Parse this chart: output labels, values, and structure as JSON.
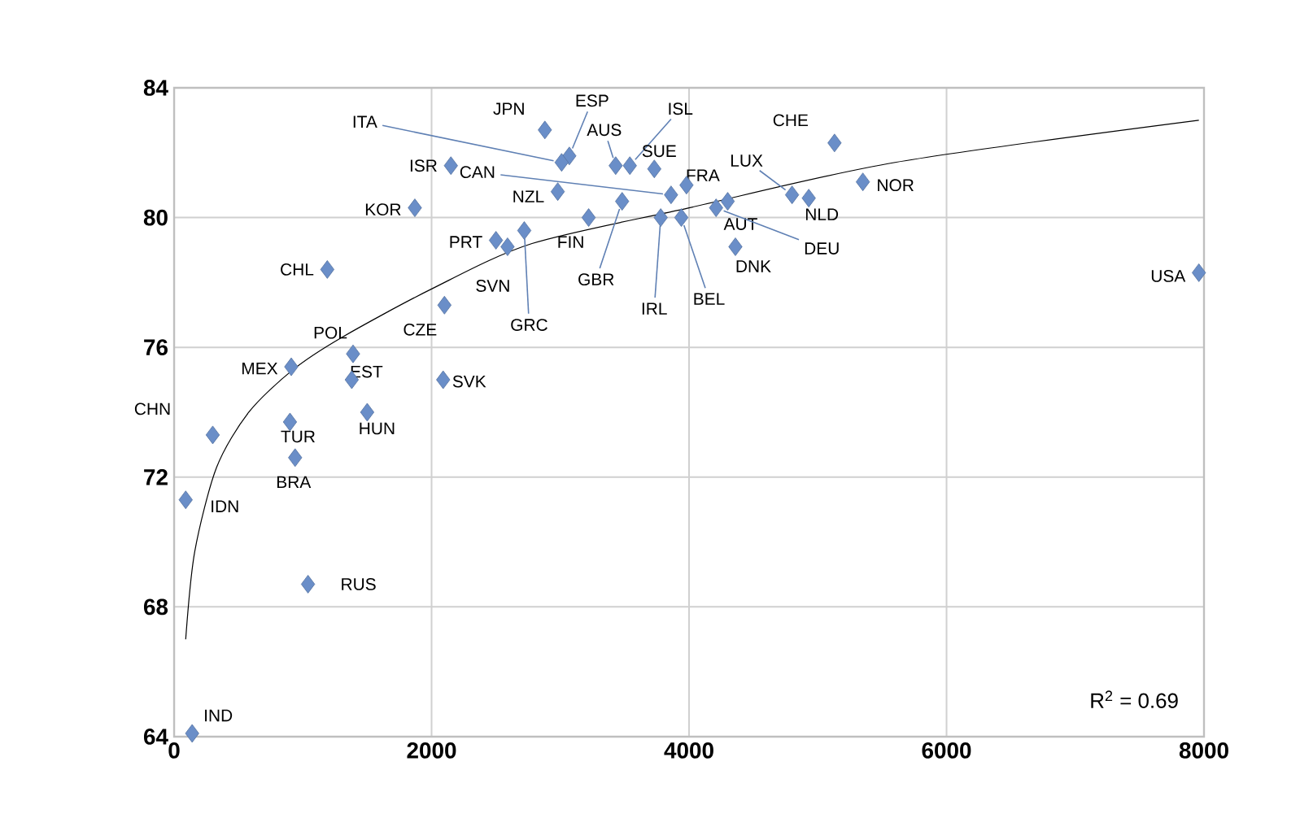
{
  "chart_data": {
    "type": "scatter",
    "xlim": [
      0,
      8000
    ],
    "ylim": [
      64,
      84
    ],
    "xticks": [
      0,
      2000,
      4000,
      6000,
      8000
    ],
    "yticks": [
      64,
      68,
      72,
      76,
      80,
      84
    ],
    "grid": true,
    "series": [
      {
        "marker": "diamond",
        "color": "#6a8ec8",
        "x": [
          2880,
          3070,
          3010,
          3430,
          3540,
          3730,
          5130,
          2150,
          3860,
          2980,
          4800,
          3980,
          5350,
          1870,
          4300,
          4930,
          2500,
          3220,
          4210,
          1190,
          2590,
          3480,
          4360,
          3780,
          3940,
          7960,
          2720,
          1390,
          2100,
          910,
          1380,
          2090,
          300,
          900,
          1500,
          940,
          90,
          1040,
          140
        ],
        "values": [
          82.7,
          81.9,
          81.7,
          81.6,
          81.6,
          81.5,
          82.3,
          81.6,
          80.7,
          80.8,
          80.7,
          81.0,
          81.1,
          80.3,
          80.5,
          80.6,
          79.3,
          80.0,
          80.3,
          78.4,
          79.1,
          80.5,
          79.1,
          80.0,
          80.0,
          78.3,
          79.6,
          75.8,
          77.3,
          75.4,
          75.0,
          75.0,
          73.3,
          73.7,
          74.0,
          72.6,
          71.3,
          68.7,
          64.1
        ]
      },
      {
        "type": "line",
        "color": "#000000",
        "x": [
          90,
          160,
          330,
          580,
          920,
          1300,
          2000,
          2780,
          4000,
          5600,
          7960
        ],
        "values": [
          67.0,
          69.7,
          72.3,
          74.0,
          75.3,
          76.3,
          77.8,
          79.2,
          80.3,
          81.7,
          83.0
        ]
      }
    ],
    "annotations": [
      {
        "text": "JPN",
        "x": 2880,
        "y": 82.7
      },
      {
        "text": "ESP",
        "x": 3070,
        "y": 81.9
      },
      {
        "text": "ITA",
        "x": 3010,
        "y": 81.7
      },
      {
        "text": "AUS",
        "x": 3430,
        "y": 81.6
      },
      {
        "text": "ISL",
        "x": 3540,
        "y": 81.6
      },
      {
        "text": "SUE",
        "x": 3730,
        "y": 81.5
      },
      {
        "text": "CHE",
        "x": 5130,
        "y": 82.3
      },
      {
        "text": "ISR",
        "x": 2150,
        "y": 81.6
      },
      {
        "text": "CAN",
        "x": 3860,
        "y": 80.7
      },
      {
        "text": "NZL",
        "x": 2980,
        "y": 80.8
      },
      {
        "text": "LUX",
        "x": 4800,
        "y": 80.7
      },
      {
        "text": "FRA",
        "x": 3980,
        "y": 81.0
      },
      {
        "text": "NOR",
        "x": 5350,
        "y": 81.1
      },
      {
        "text": "KOR",
        "x": 1870,
        "y": 80.3
      },
      {
        "text": "AUT",
        "x": 4300,
        "y": 80.5
      },
      {
        "text": "NLD",
        "x": 4930,
        "y": 80.6
      },
      {
        "text": "PRT",
        "x": 2500,
        "y": 79.3
      },
      {
        "text": "FIN",
        "x": 3220,
        "y": 80.0
      },
      {
        "text": "DEU",
        "x": 4210,
        "y": 80.3
      },
      {
        "text": "CHL",
        "x": 1190,
        "y": 78.4
      },
      {
        "text": "SVN",
        "x": 2590,
        "y": 79.1
      },
      {
        "text": "GBR",
        "x": 3480,
        "y": 80.5
      },
      {
        "text": "DNK",
        "x": 4360,
        "y": 79.1
      },
      {
        "text": "IRL",
        "x": 3780,
        "y": 80.0
      },
      {
        "text": "BEL",
        "x": 3940,
        "y": 80.0
      },
      {
        "text": "USA",
        "x": 7960,
        "y": 78.3
      },
      {
        "text": "GRC",
        "x": 2720,
        "y": 79.6
      },
      {
        "text": "POL",
        "x": 1390,
        "y": 75.8
      },
      {
        "text": "CZE",
        "x": 2100,
        "y": 77.3
      },
      {
        "text": "MEX",
        "x": 910,
        "y": 75.4
      },
      {
        "text": "EST",
        "x": 1380,
        "y": 75.0
      },
      {
        "text": "SVK",
        "x": 2090,
        "y": 75.0
      },
      {
        "text": "CHN",
        "x": 300,
        "y": 73.3
      },
      {
        "text": "TUR",
        "x": 900,
        "y": 73.7
      },
      {
        "text": "HUN",
        "x": 1500,
        "y": 74.0
      },
      {
        "text": "BRA",
        "x": 940,
        "y": 72.6
      },
      {
        "text": "IDN",
        "x": 90,
        "y": 71.3
      },
      {
        "text": "RUS",
        "x": 1040,
        "y": 68.7
      },
      {
        "text": "IND",
        "x": 140,
        "y": 64.1
      },
      "R$^{2}$ = 0.69"
    ]
  }
}
